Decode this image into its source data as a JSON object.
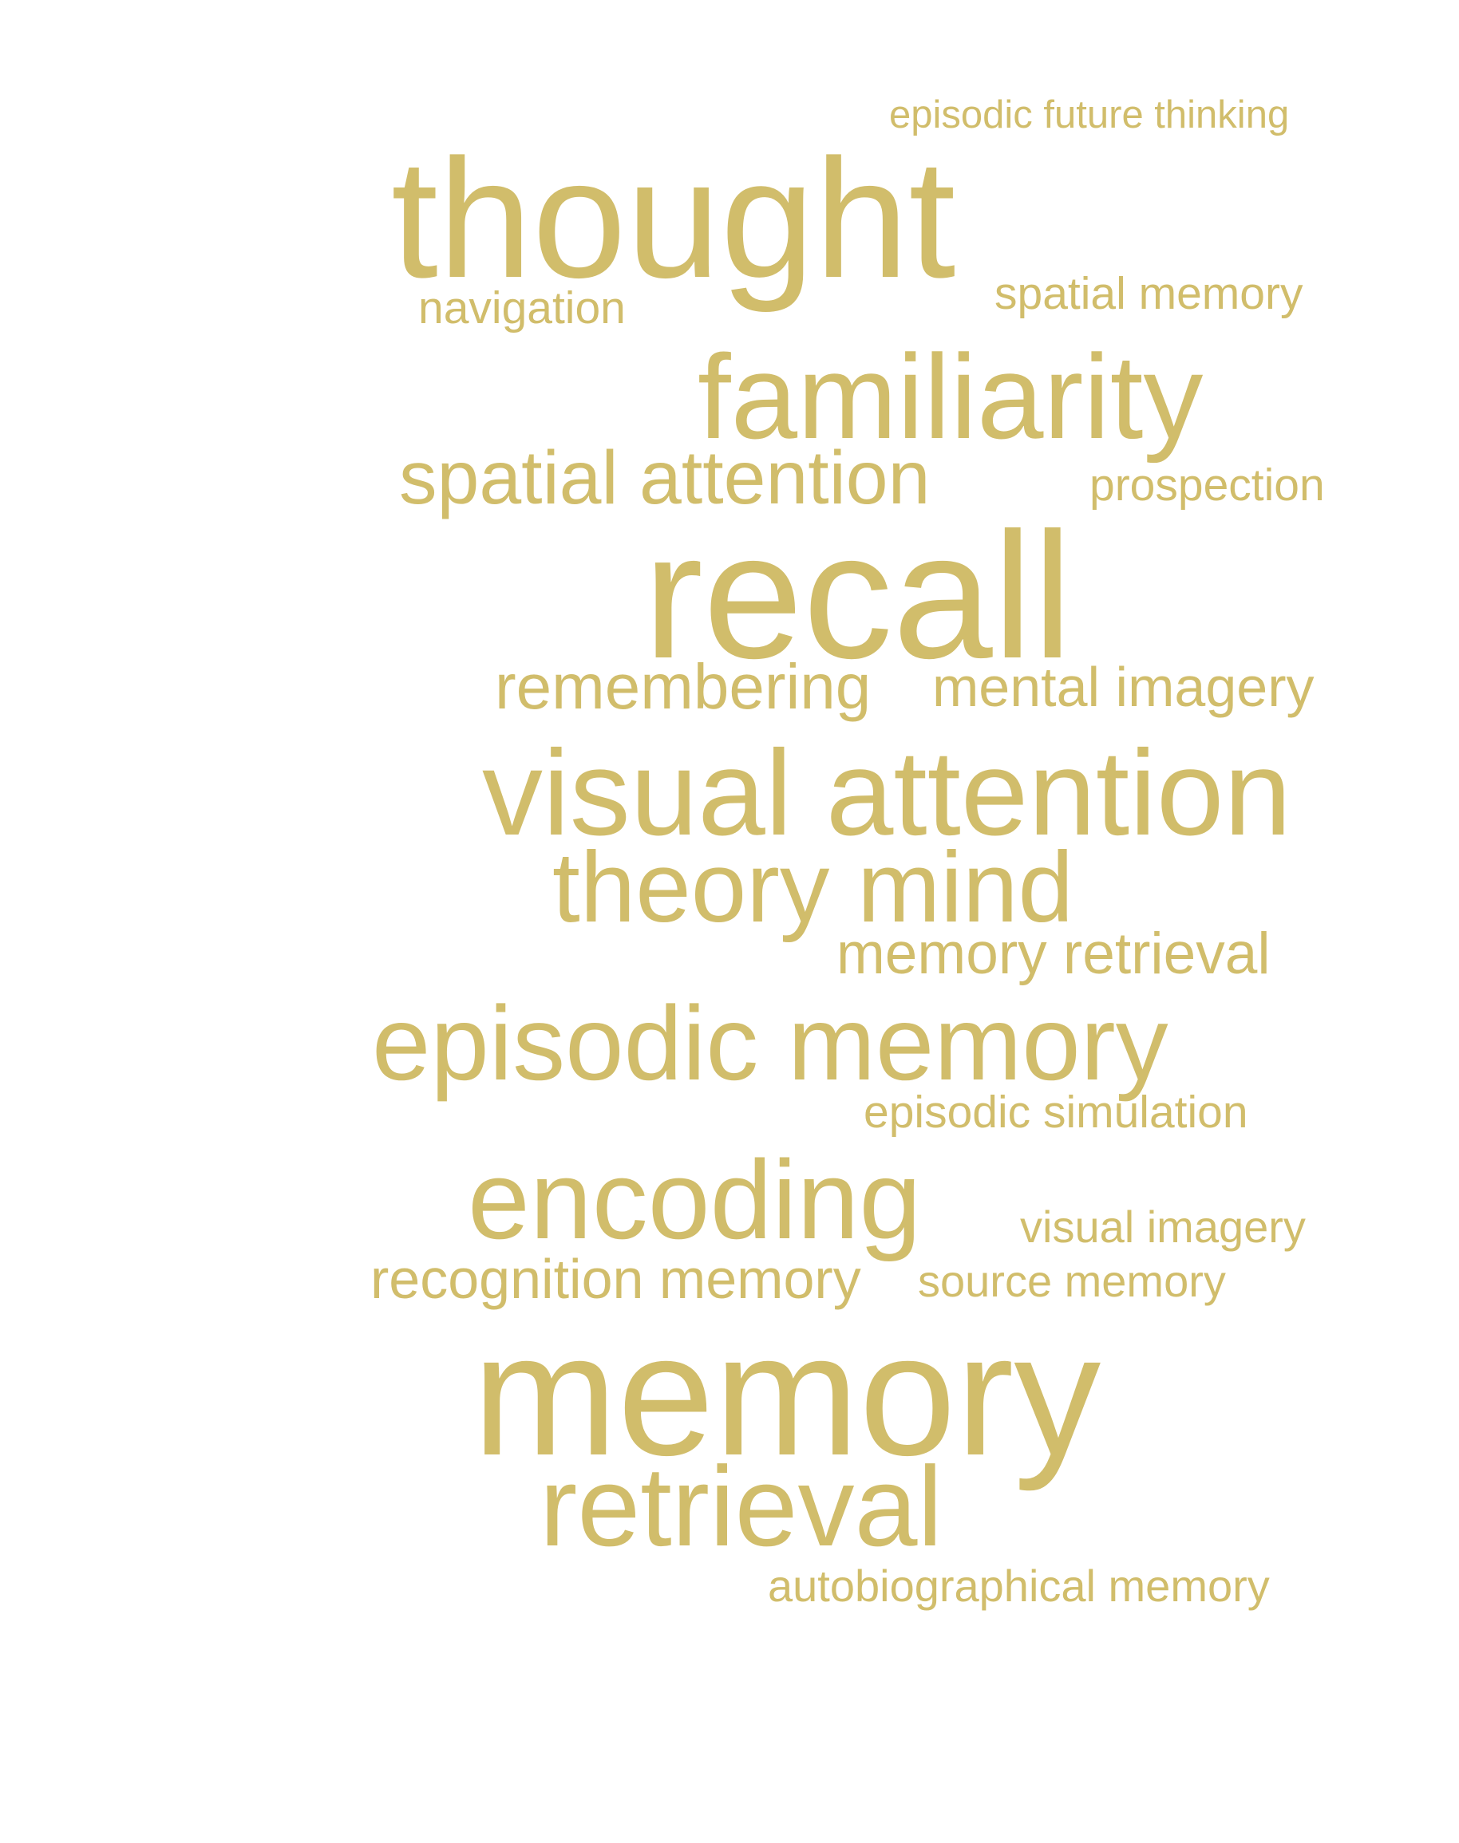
{
  "color": "#d1bd6b",
  "words": [
    {
      "text": "episodic future thinking",
      "weight": 1
    },
    {
      "text": "thought",
      "weight": 5
    },
    {
      "text": "navigation",
      "weight": 1
    },
    {
      "text": "spatial memory",
      "weight": 1
    },
    {
      "text": "familiarity",
      "weight": 4
    },
    {
      "text": "spatial attention",
      "weight": 2
    },
    {
      "text": "prospection",
      "weight": 1
    },
    {
      "text": "recall",
      "weight": 5
    },
    {
      "text": "remembering",
      "weight": 2
    },
    {
      "text": "mental imagery",
      "weight": 2
    },
    {
      "text": "visual attention",
      "weight": 4
    },
    {
      "text": "theory mind",
      "weight": 3
    },
    {
      "text": "memory retrieval",
      "weight": 2
    },
    {
      "text": "episodic memory",
      "weight": 4
    },
    {
      "text": "episodic simulation",
      "weight": 1
    },
    {
      "text": "encoding",
      "weight": 4
    },
    {
      "text": "visual imagery",
      "weight": 1
    },
    {
      "text": "recognition memory",
      "weight": 2
    },
    {
      "text": "source memory",
      "weight": 1
    },
    {
      "text": "memory",
      "weight": 5
    },
    {
      "text": "retrieval",
      "weight": 4
    },
    {
      "text": "autobiographical memory",
      "weight": 1
    }
  ]
}
